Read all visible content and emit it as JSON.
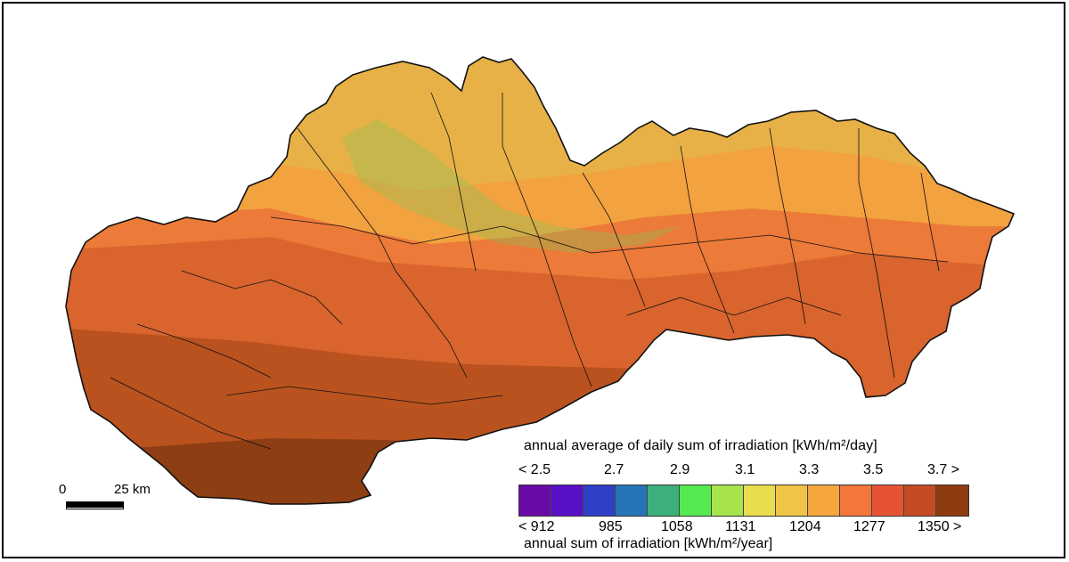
{
  "map": {
    "colors": {
      "north_mountain": "#e7b148",
      "upper": "#f2a23f",
      "middle": "#ec7a38",
      "lower": "#d9642d",
      "south": "#b9521f",
      "far_south": "#8d3e13",
      "outline": "#111111",
      "forest_tint": "#88c457"
    }
  },
  "legend": {
    "title_top": "annual average of daily sum of irradiation [kWh/m²/day]",
    "title_bottom": "annual sum of irradiation [kWh/m²/year]",
    "ticks_top": [
      "< 2.5",
      "2.7",
      "2.9",
      "3.1",
      "3.3",
      "3.5",
      "3.7 >"
    ],
    "ticks_bottom": [
      "< 912",
      "985",
      "1058",
      "1131",
      "1204",
      "1277",
      "1350 >"
    ],
    "swatch_colors": [
      "#6a0aa6",
      "#5a10c6",
      "#2f3fc6",
      "#2674b8",
      "#3bb07a",
      "#55ea4f",
      "#a7e34b",
      "#e9dc4d",
      "#f0c445",
      "#f5a63c",
      "#f3763b",
      "#e65334",
      "#c44b22",
      "#8f3b10"
    ]
  },
  "scale": {
    "zero": "0",
    "distance": "25 km"
  }
}
